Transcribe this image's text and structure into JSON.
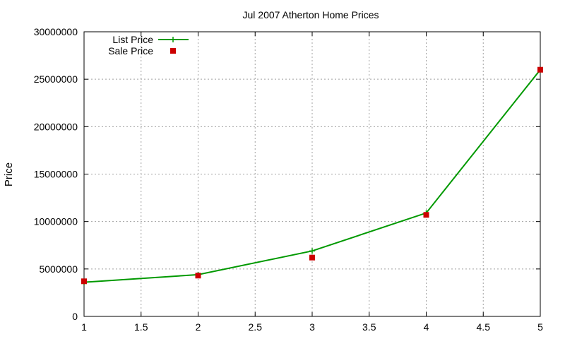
{
  "chart_data": {
    "type": "line",
    "title": "Jul 2007 Atherton Home Prices",
    "xlabel": "",
    "ylabel": "Price",
    "xlim": [
      1,
      5
    ],
    "ylim": [
      0,
      30000000
    ],
    "x_ticks": [
      "1",
      "1.5",
      "2",
      "2.5",
      "3",
      "3.5",
      "4",
      "4.5",
      "5"
    ],
    "y_ticks": [
      "0",
      "5000000",
      "10000000",
      "15000000",
      "20000000",
      "25000000",
      "30000000"
    ],
    "grid": true,
    "legend_position": "top-left",
    "series": [
      {
        "name": "List Price",
        "style": "linespoints",
        "marker": "plus",
        "color": "#009900",
        "x": [
          1,
          2,
          3,
          4,
          5
        ],
        "y": [
          3600000,
          4400000,
          6900000,
          10900000,
          26000000
        ]
      },
      {
        "name": "Sale Price",
        "style": "points",
        "marker": "square",
        "color": "#cc0000",
        "x": [
          1,
          2,
          3,
          4,
          5
        ],
        "y": [
          3700000,
          4300000,
          6200000,
          10700000,
          26000000
        ]
      }
    ]
  }
}
